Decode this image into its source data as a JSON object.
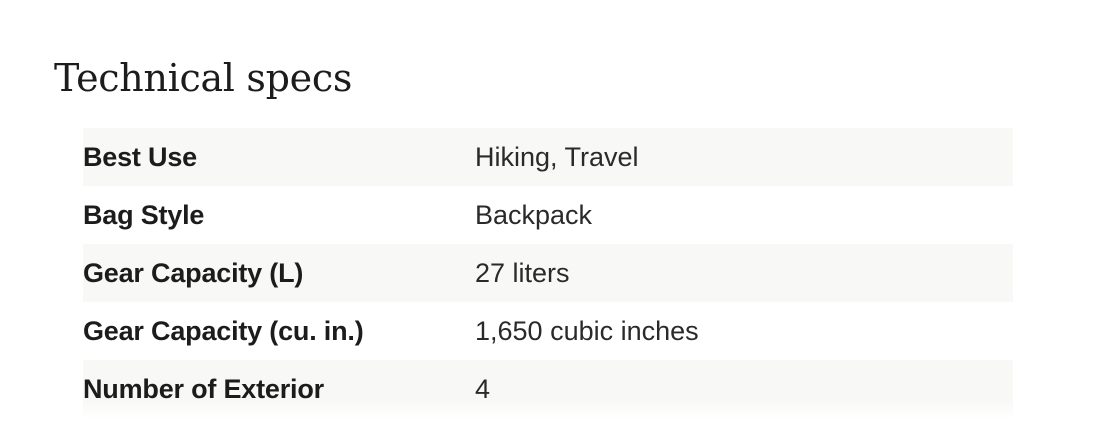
{
  "section": {
    "title": "Technical specs"
  },
  "specs": [
    {
      "label": "Best Use",
      "value": "Hiking, Travel"
    },
    {
      "label": "Bag Style",
      "value": "Backpack"
    },
    {
      "label": "Gear Capacity (L)",
      "value": "27 liters"
    },
    {
      "label": "Gear Capacity (cu. in.)",
      "value": "1,650 cubic inches"
    },
    {
      "label": "Number of Exterior",
      "value": "4"
    }
  ],
  "colors": {
    "row_shade": "#f8f8f7",
    "text": "#1c1c1c"
  }
}
